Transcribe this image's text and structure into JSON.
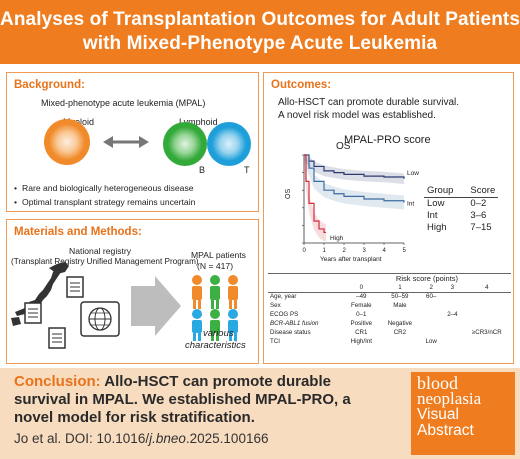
{
  "header": {
    "title_line1": "Analyses of Transplantation Outcomes for Adult Patients",
    "title_line2": "with Mixed-Phenotype Acute Leukemia"
  },
  "background": {
    "title": "Background:",
    "mpal_label": "Mixed-phenotype acute leukemia (MPAL)",
    "myeloid_label": "Myeloid",
    "lymphoid_label": "Lymphoid",
    "b_label": "B",
    "t_label": "T",
    "bullets": [
      "Rare and biologically heterogeneous disease",
      "Optimal transplant strategy remains uncertain"
    ],
    "colors": {
      "myeloid": "#f39a3c",
      "b_cell": "#3cb043",
      "t_cell": "#29a9e1"
    }
  },
  "methods": {
    "title": "Materials and Methods:",
    "registry_line1": "National registry",
    "registry_line2": "(Transplant Registry Unified Management Program)",
    "patients_label": "MPAL patients",
    "patients_n": "(N = 417)",
    "characteristics_line1": "various",
    "characteristics_line2": "characteristics",
    "icons": [
      "japan-map-icon",
      "document-icon",
      "globe-icon",
      "arrow-icon",
      "person-icon"
    ]
  },
  "outcomes": {
    "title": "Outcomes:",
    "line1": "Allo-HSCT can promote durable survival.",
    "line2": "A novel risk model was established.",
    "score_title": "MPAL-PRO score",
    "km_title": "OS",
    "km_ylabel": "OS",
    "km_xlabel": "Years after transplant",
    "km_xticks": [
      "0",
      "1",
      "2",
      "3",
      "4",
      "5"
    ],
    "km_yticks": [
      "1.0",
      "0.8",
      "0.6",
      "0.4",
      "0.2",
      "0"
    ],
    "km_labels": {
      "low": "Low",
      "int": "Int",
      "high": "High"
    },
    "score_table": {
      "headers": [
        "Group",
        "Score"
      ],
      "rows": [
        [
          "Low",
          "0–2"
        ],
        [
          "Int",
          "3–6"
        ],
        [
          "High",
          "7–15"
        ]
      ]
    },
    "risk_table": {
      "title": "Risk score (points)",
      "points": [
        "0",
        "1",
        "2",
        "3",
        "4"
      ],
      "rows": [
        {
          "label": "Age, year",
          "italic": false,
          "cells": [
            "–49",
            "50–59",
            "60–",
            "",
            ""
          ]
        },
        {
          "label": "Sex",
          "italic": false,
          "cells": [
            "Female",
            "Male",
            "",
            "",
            ""
          ]
        },
        {
          "label": "ECOG PS",
          "italic": false,
          "cells": [
            "0–1",
            "",
            "",
            "2–4",
            ""
          ]
        },
        {
          "label": "BCR-ABL1 fusion",
          "italic": true,
          "cells": [
            "Positive",
            "Negative",
            "",
            "",
            ""
          ]
        },
        {
          "label": "Disease status",
          "italic": false,
          "cells": [
            "CR1",
            "CR2",
            "",
            "",
            "≥CR3/nCR"
          ]
        },
        {
          "label": "TCI",
          "italic": false,
          "cells": [
            "High/Int",
            "",
            "Low",
            "",
            ""
          ]
        }
      ]
    },
    "colors": {
      "low": "#2d3a6e",
      "int": "#3d6da0",
      "high": "#d42a3a"
    }
  },
  "chart_data": {
    "type": "line",
    "title": "OS",
    "xlabel": "Years after transplant",
    "ylabel": "OS",
    "xlim": [
      0,
      5
    ],
    "ylim": [
      0,
      1
    ],
    "series": [
      {
        "name": "Low",
        "x": [
          0,
          0.25,
          0.5,
          1,
          1.5,
          2,
          3,
          4,
          5
        ],
        "y": [
          1.0,
          0.93,
          0.87,
          0.82,
          0.8,
          0.78,
          0.76,
          0.75,
          0.73
        ]
      },
      {
        "name": "Int",
        "x": [
          0,
          0.25,
          0.5,
          1,
          1.5,
          2,
          3,
          4,
          5
        ],
        "y": [
          1.0,
          0.85,
          0.7,
          0.6,
          0.56,
          0.53,
          0.5,
          0.48,
          0.46
        ]
      },
      {
        "name": "High",
        "x": [
          0,
          0.1,
          0.25,
          0.5,
          0.75,
          1,
          1.1
        ],
        "y": [
          1.0,
          0.7,
          0.45,
          0.25,
          0.16,
          0.12,
          0.12
        ]
      }
    ]
  },
  "conclusion": {
    "label": "Conclusion:",
    "text": " Allo-HSCT can promote durable survival in MPAL. We established MPAL-PRO, a novel model for risk stratification.",
    "citation_prefix": "Jo et al. DOI: 10.1016/",
    "citation_italic": "j.bneo",
    "citation_suffix": ".2025.100166"
  },
  "badge": {
    "blood": "blood",
    "neoplasia": "neoplasia",
    "visual": "Visual",
    "abstract": "Abstract"
  }
}
